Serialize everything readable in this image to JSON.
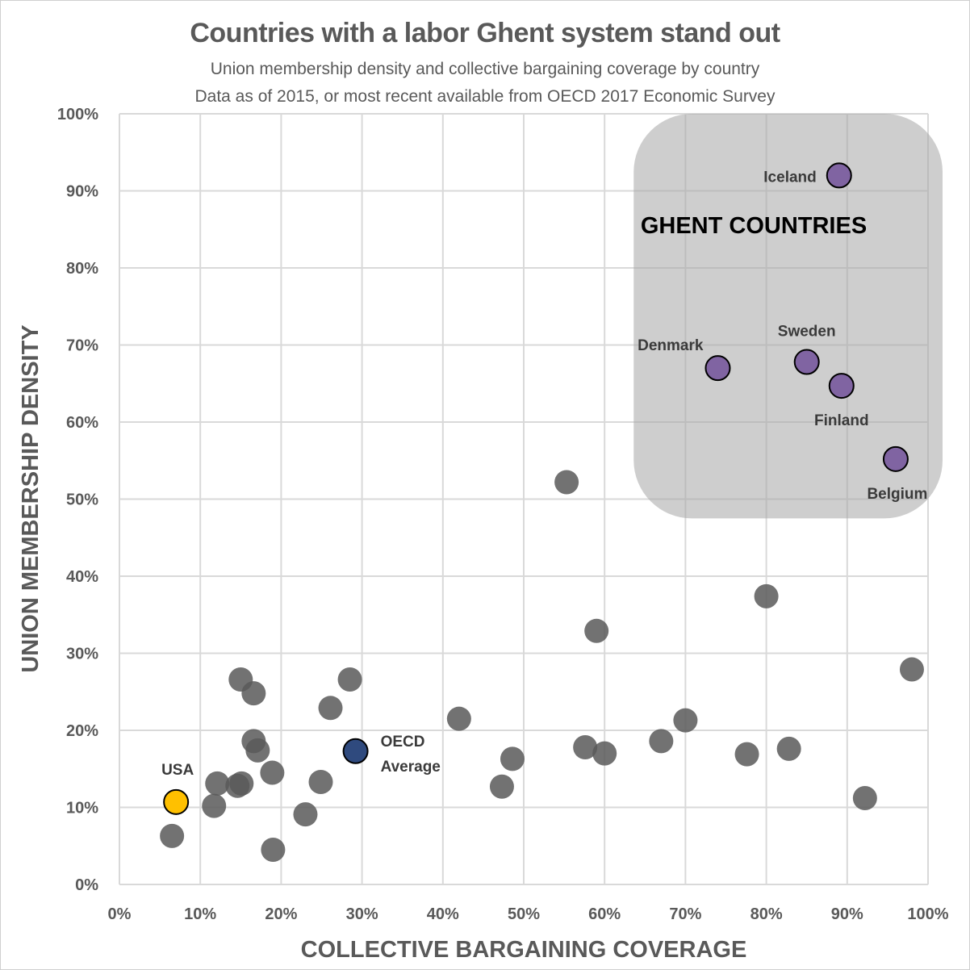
{
  "chart_data": {
    "type": "scatter",
    "title": "Countries with a labor Ghent system stand out",
    "subtitle_lines": [
      "Union membership density and collective bargaining coverage by country",
      "Data as of 2015, or most recent available from OECD 2017 Economic Survey"
    ],
    "xlabel": "COLLECTIVE BARGAINING COVERAGE",
    "ylabel": "UNION MEMBERSHIP DENSITY",
    "xlim": [
      0,
      100
    ],
    "ylim": [
      0,
      100
    ],
    "x_ticks": [
      "0%",
      "10%",
      "20%",
      "30%",
      "40%",
      "50%",
      "60%",
      "70%",
      "80%",
      "90%",
      "100%"
    ],
    "y_ticks": [
      "0%",
      "10%",
      "20%",
      "30%",
      "40%",
      "50%",
      "60%",
      "70%",
      "80%",
      "90%",
      "100%"
    ],
    "grid": true,
    "region": {
      "label": "GHENT COUNTRIES",
      "x_range": [
        62,
        102
      ],
      "y_range": [
        47.5,
        100
      ],
      "color": "#a6a6a6"
    },
    "colors": {
      "other": "#595959",
      "ghent": "#8064a2",
      "usa": "#ffc000",
      "oecd": "#2f4a7e",
      "grid": "#d9d9d9"
    },
    "series": [
      {
        "group": "other",
        "points": [
          {
            "x": 6.5,
            "y": 6.3
          },
          {
            "x": 11.7,
            "y": 10.2
          },
          {
            "x": 12.1,
            "y": 13.1
          },
          {
            "x": 14.6,
            "y": 12.8
          },
          {
            "x": 15.1,
            "y": 13.1
          },
          {
            "x": 15.0,
            "y": 26.6
          },
          {
            "x": 16.6,
            "y": 24.8
          },
          {
            "x": 16.6,
            "y": 18.6
          },
          {
            "x": 17.1,
            "y": 17.4
          },
          {
            "x": 18.9,
            "y": 14.5
          },
          {
            "x": 19.0,
            "y": 4.5
          },
          {
            "x": 23.0,
            "y": 9.1
          },
          {
            "x": 24.9,
            "y": 13.3
          },
          {
            "x": 26.1,
            "y": 22.9
          },
          {
            "x": 28.5,
            "y": 26.6
          },
          {
            "x": 42.0,
            "y": 21.5
          },
          {
            "x": 47.3,
            "y": 12.7
          },
          {
            "x": 48.6,
            "y": 16.3
          },
          {
            "x": 55.3,
            "y": 52.2
          },
          {
            "x": 57.6,
            "y": 17.8
          },
          {
            "x": 59.0,
            "y": 32.9
          },
          {
            "x": 60.0,
            "y": 17.0
          },
          {
            "x": 67.0,
            "y": 18.6
          },
          {
            "x": 70.0,
            "y": 21.3
          },
          {
            "x": 77.6,
            "y": 16.9
          },
          {
            "x": 80.0,
            "y": 37.4
          },
          {
            "x": 82.8,
            "y": 17.6
          },
          {
            "x": 92.2,
            "y": 11.2
          },
          {
            "x": 98.0,
            "y": 27.9
          }
        ]
      },
      {
        "group": "ghent",
        "points": [
          {
            "name": "Iceland",
            "x": 89.0,
            "y": 92.0
          },
          {
            "name": "Denmark",
            "x": 74.0,
            "y": 67.0
          },
          {
            "name": "Sweden",
            "x": 85.0,
            "y": 67.8
          },
          {
            "name": "Finland",
            "x": 89.3,
            "y": 64.7
          },
          {
            "name": "Belgium",
            "x": 96.0,
            "y": 55.2
          }
        ]
      },
      {
        "group": "usa",
        "points": [
          {
            "name": "USA",
            "x": 7.0,
            "y": 10.7
          }
        ]
      },
      {
        "group": "oecd",
        "points": [
          {
            "name": "OECD Average",
            "name_lines": [
              "OECD",
              "Average"
            ],
            "x": 29.2,
            "y": 17.3
          }
        ]
      }
    ]
  }
}
